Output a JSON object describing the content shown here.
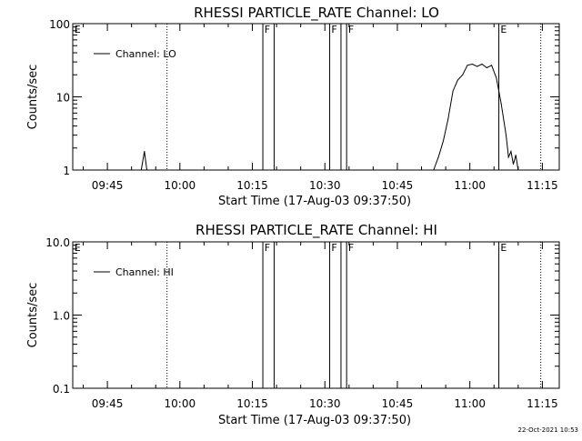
{
  "footer": {
    "timestamp": "22-Oct-2021 10:53"
  },
  "chart_data": [
    {
      "type": "line",
      "title": "RHESSI PARTICLE_RATE Channel: LO",
      "xlabel": "Start Time (17-Aug-03 09:37:50)",
      "ylabel": "Counts/sec",
      "y_scale": "log",
      "xlim": [
        "09:37:50",
        "11:18:30"
      ],
      "ylim": [
        1,
        100
      ],
      "x_ticks": [
        "09:45",
        "10:00",
        "10:15",
        "10:30",
        "10:45",
        "11:00",
        "11:15"
      ],
      "y_ticks": [
        "1",
        "10",
        "100"
      ],
      "legend": {
        "position": "top-left",
        "entries": [
          "Channel: LO"
        ]
      },
      "flag_labels": [
        "E",
        "F",
        "F",
        "F",
        "E"
      ],
      "series": [
        {
          "name": "Channel: LO",
          "segments": [
            [
              [
                "09:52:00",
                1
              ],
              [
                "09:52:40",
                1.8
              ],
              [
                "09:53:10",
                1
              ]
            ],
            [
              [
                "10:52:30",
                1
              ],
              [
                "10:53:30",
                1.5
              ],
              [
                "10:54:30",
                2.5
              ],
              [
                "10:55:30",
                5
              ],
              [
                "10:56:30",
                12
              ],
              [
                "10:57:30",
                17
              ],
              [
                "10:58:30",
                20
              ],
              [
                "10:59:30",
                27
              ],
              [
                "11:00:30",
                28
              ],
              [
                "11:01:30",
                26
              ],
              [
                "11:02:30",
                28
              ],
              [
                "11:03:30",
                25
              ],
              [
                "11:04:30",
                27
              ],
              [
                "11:05:30",
                18
              ],
              [
                "11:06:30",
                8
              ],
              [
                "11:07:30",
                3
              ],
              [
                "11:08:00",
                1.5
              ],
              [
                "11:08:30",
                1.8
              ],
              [
                "11:09:00",
                1.2
              ],
              [
                "11:09:30",
                1.6
              ],
              [
                "11:10:00",
                1
              ]
            ]
          ]
        }
      ]
    },
    {
      "type": "line",
      "title": "RHESSI PARTICLE_RATE Channel: HI",
      "xlabel": "Start Time (17-Aug-03 09:37:50)",
      "ylabel": "Counts/sec",
      "y_scale": "log",
      "xlim": [
        "09:37:50",
        "11:18:30"
      ],
      "ylim": [
        0.1,
        10
      ],
      "x_ticks": [
        "09:45",
        "10:00",
        "10:15",
        "10:30",
        "10:45",
        "11:00",
        "11:15"
      ],
      "y_ticks": [
        "0.1",
        "1.0",
        "10.0"
      ],
      "legend": {
        "position": "top-left",
        "entries": [
          "Channel: HI"
        ]
      },
      "flag_labels": [
        "E",
        "F",
        "F",
        "F",
        "E"
      ],
      "series": [
        {
          "name": "Channel: HI",
          "segments": []
        }
      ]
    }
  ]
}
